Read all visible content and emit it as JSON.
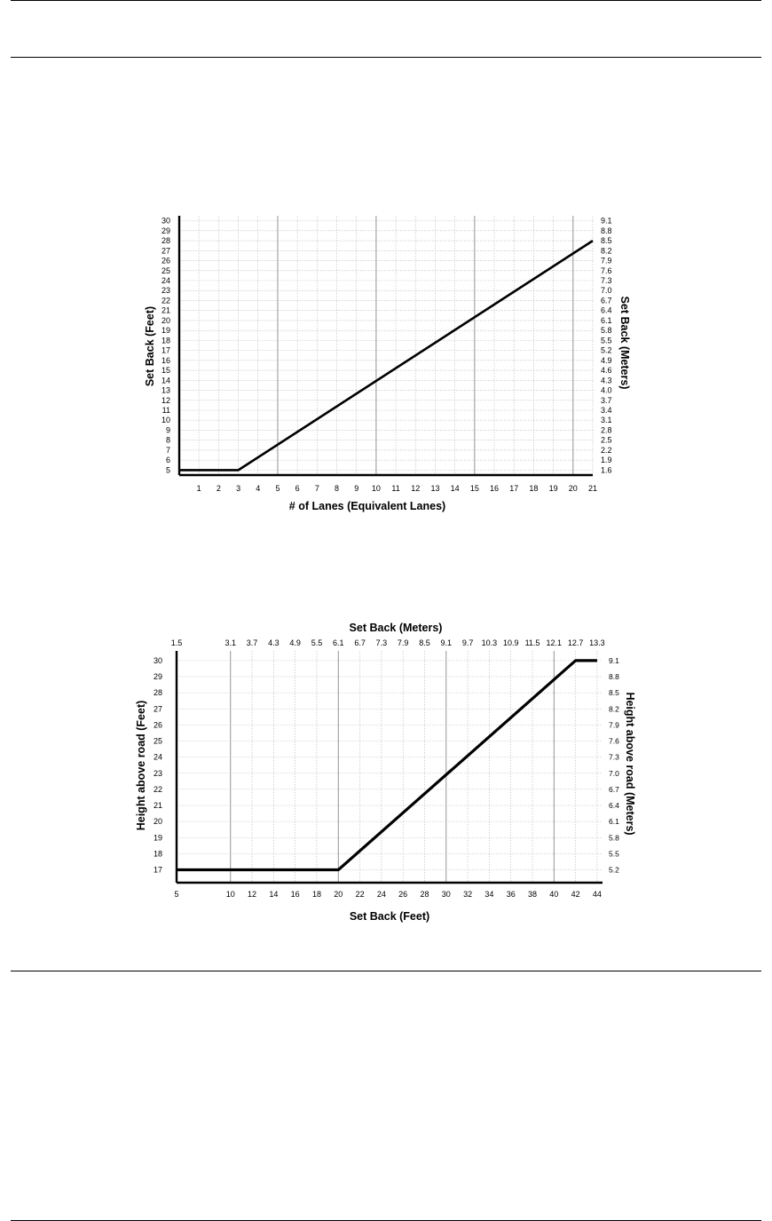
{
  "chart_data": [
    {
      "type": "line",
      "xlabel": "# of Lanes (Equivalent Lanes)",
      "ylabel": "Set Back (Feet)",
      "y2label": "Set Back (Meters)",
      "xlim": [
        0,
        21
      ],
      "ylim": [
        4.5,
        30.5
      ],
      "x_ticks": [
        "1",
        "2",
        "3",
        "4",
        "5",
        "6",
        "7",
        "8",
        "9",
        "10",
        "11",
        "12",
        "13",
        "14",
        "15",
        "16",
        "17",
        "18",
        "19",
        "20",
        "21"
      ],
      "y_ticks": [
        "5",
        "6",
        "7",
        "8",
        "9",
        "10",
        "11",
        "12",
        "13",
        "14",
        "15",
        "16",
        "17",
        "18",
        "19",
        "20",
        "21",
        "22",
        "23",
        "24",
        "25",
        "26",
        "27",
        "28",
        "29",
        "30"
      ],
      "y2_ticks": [
        "1.6",
        "1.9",
        "2.2",
        "2.5",
        "2.8",
        "3.1",
        "3.4",
        "3.7",
        "4.0",
        "4.3",
        "4.6",
        "4.9",
        "5.2",
        "5.5",
        "5.8",
        "6.1",
        "6.4",
        "6.7",
        "7.0",
        "7.3",
        "7.6",
        "7.9",
        "8.2",
        "8.5",
        "8.8",
        "9.1"
      ],
      "grid": true,
      "series": [
        {
          "x": [
            0,
            3,
            21
          ],
          "y": [
            5,
            5,
            28
          ]
        }
      ]
    },
    {
      "type": "line",
      "title": "Set Back (Meters)",
      "xlabel": "Set Back (Feet)",
      "ylabel": "Height above road  (Feet)",
      "y2label": "Height above road  (Meters)",
      "xlim": [
        5,
        44.5
      ],
      "ylim": [
        16.2,
        30.6
      ],
      "x_ticks": [
        "5",
        "10",
        "12",
        "14",
        "16",
        "18",
        "20",
        "22",
        "24",
        "26",
        "28",
        "30",
        "32",
        "34",
        "36",
        "38",
        "40",
        "42",
        "44"
      ],
      "x2_ticks": [
        "1.5",
        "3.1",
        "3.7",
        "4.3",
        "4.9",
        "5.5",
        "6.1",
        "6.7",
        "7.3",
        "7.9",
        "8.5",
        "9.1",
        "9.7",
        "10.3",
        "10.9",
        "11.5",
        "12.1",
        "12.7",
        "13.3"
      ],
      "y_ticks": [
        "17",
        "18",
        "19",
        "20",
        "21",
        "22",
        "23",
        "24",
        "25",
        "26",
        "27",
        "28",
        "29",
        "30"
      ],
      "y2_ticks": [
        "5.2",
        "5.5",
        "5.8",
        "6.1",
        "6.4",
        "6.7",
        "7.0",
        "7.3",
        "7.6",
        "7.9",
        "8.2",
        "8.5",
        "8.8",
        "9.1"
      ],
      "grid": true,
      "series": [
        {
          "x": [
            5,
            20,
            42,
            44
          ],
          "y": [
            17,
            17,
            30,
            30
          ]
        }
      ]
    }
  ]
}
